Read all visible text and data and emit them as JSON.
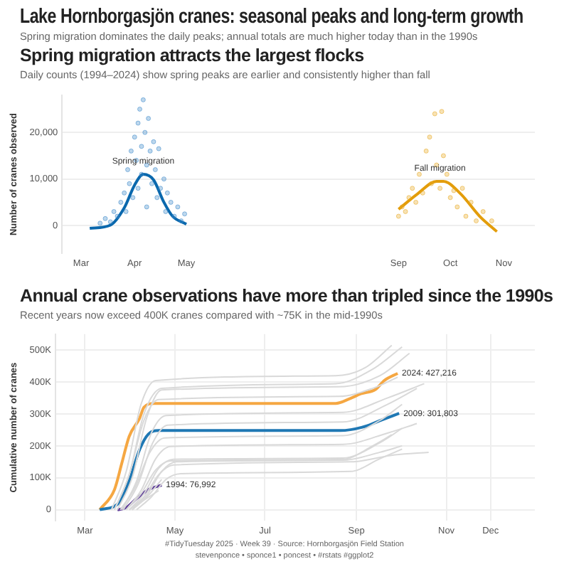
{
  "chart_data": [
    {
      "type": "line",
      "title": "Spring migration attracts the largest flocks",
      "subtitle": "Daily counts (1994–2024) show spring peaks are earlier and consistently higher than fall",
      "ylabel": "Number of cranes observed",
      "annotations": [
        "Lake Hornborgasjön cranes: seasonal peaks and long-term growth",
        "Spring migration dominates the daily peaks; annual totals are much higher today than in the 1990s",
        {
          "text": "Spring migration",
          "x": "--04-06",
          "y": 11000
        },
        {
          "text": "Fall migration",
          "x": "--09-25",
          "y": 9500
        }
      ],
      "xlim": [
        "--02-18",
        "--11-19"
      ],
      "xticks": [
        {
          "value": "--03-01",
          "label": "Mar"
        },
        {
          "value": "--04-01",
          "label": "Apr"
        },
        {
          "value": "--05-01",
          "label": "May"
        },
        {
          "value": "--09-01",
          "label": "Sep"
        },
        {
          "value": "--10-01",
          "label": "Oct"
        },
        {
          "value": "--11-01",
          "label": "Nov"
        }
      ],
      "ylim": [
        -6000,
        28000
      ],
      "yticks": [
        0,
        {
          "value": 10000,
          "label": "10,000"
        },
        {
          "value": 20000,
          "label": "20,000"
        }
      ],
      "grid": "y",
      "legend": false,
      "series": [
        {
          "type": "scatter",
          "color": "#3a87c8",
          "x": [
            "--03-12",
            "--03-15",
            "--03-18",
            "--03-20",
            "--03-22",
            "--03-24",
            "--03-26",
            "--03-27",
            "--03-28",
            "--03-29",
            "--03-30",
            "--03-31",
            "--04-01",
            "--04-02",
            "--04-03",
            "--04-03",
            "--04-04",
            "--04-05",
            "--04-05",
            "--04-06",
            "--04-07",
            "--04-08",
            "--04-08",
            "--04-09",
            "--04-10",
            "--04-11",
            "--04-12",
            "--04-13",
            "--04-14",
            "--04-15",
            "--04-16",
            "--04-18",
            "--04-19",
            "--04-20",
            "--04-22",
            "--04-24",
            "--04-26",
            "--04-28",
            "--04-30"
          ],
          "values": [
            500,
            1500,
            800,
            3000,
            2000,
            5000,
            7000,
            3000,
            12000,
            9000,
            16000,
            6000,
            19000,
            14000,
            22000,
            8000,
            25000,
            17000,
            11000,
            27000,
            20000,
            13000,
            4000,
            23000,
            16000,
            9000,
            18000,
            12000,
            6000,
            16500,
            8000,
            10000,
            3000,
            7000,
            5000,
            2000,
            4000,
            1000,
            2500
          ]
        },
        {
          "type": "scatter",
          "color": "#e8a820",
          "x": [
            "--09-01",
            "--09-03",
            "--09-05",
            "--09-07",
            "--09-09",
            "--09-11",
            "--09-13",
            "--09-15",
            "--09-17",
            "--09-19",
            "--09-20",
            "--09-22",
            "--09-23",
            "--09-25",
            "--09-26",
            "--09-27",
            "--09-29",
            "--10-01",
            "--10-03",
            "--10-05",
            "--10-08",
            "--10-10",
            "--10-13",
            "--10-16",
            "--10-20",
            "--10-25"
          ],
          "values": [
            2000,
            4000,
            3000,
            6000,
            8000,
            5000,
            11000,
            7000,
            16000,
            19000,
            9000,
            24000,
            13000,
            8000,
            24500,
            15000,
            11000,
            6000,
            7500,
            4000,
            8000,
            2000,
            5000,
            1000,
            3000,
            1000
          ]
        },
        {
          "type": "line",
          "color": "#0a68ad",
          "x": [
            "--03-06",
            "--03-18",
            "--03-26",
            "--04-01",
            "--04-06",
            "--04-12",
            "--04-18",
            "--04-23",
            "--05-01"
          ],
          "values": [
            -600,
            100,
            3800,
            8700,
            11000,
            9800,
            5000,
            2000,
            300
          ]
        },
        {
          "type": "line",
          "color": "#e39d0b",
          "x": [
            "--09-01",
            "--09-12",
            "--09-23",
            "--09-25",
            "--09-27",
            "--10-07",
            "--10-18",
            "--10-28"
          ],
          "values": [
            3500,
            6800,
            9500,
            9500,
            9500,
            6800,
            2000,
            -1300
          ]
        }
      ]
    },
    {
      "type": "line",
      "title": "Annual crane observations have more than tripled since the 1990s",
      "subtitle": "Recent years now exceed 400K cranes compared with ~75K in the mid-1990s",
      "ylabel": "Cumulative number of cranes",
      "annotations": [
        "#TidyTuesday 2025 · Week 39 · Source: Hornborgasjön Field Station",
        "stevenponce • sponce1 • poncest • #rstats #ggplot2",
        {
          "text": "2024: 427,216",
          "x": "--09-29",
          "y": 427216
        },
        {
          "text": "2009: 301,803",
          "x": "--09-30",
          "y": 301803
        },
        {
          "text": "1994: 76,992",
          "x": "--04-22",
          "y": 76992
        }
      ],
      "xlim": [
        "--02-09",
        "--12-31"
      ],
      "xticks": [
        {
          "value": "--03-01",
          "label": "Mar"
        },
        {
          "value": "--05-01",
          "label": "May"
        },
        {
          "value": "--07-01",
          "label": "Jul"
        },
        {
          "value": "--09-01",
          "label": "Sep"
        },
        {
          "value": "--11-01",
          "label": "Nov"
        },
        {
          "value": "--12-01",
          "label": "Dec"
        }
      ],
      "ylim": [
        -35000,
        550000
      ],
      "yticks": [
        0,
        {
          "value": 100000,
          "label": "100K"
        },
        {
          "value": 200000,
          "label": "200K"
        },
        {
          "value": 300000,
          "label": "300K"
        },
        {
          "value": 400000,
          "label": "400K"
        },
        {
          "value": 500000,
          "label": "500K"
        }
      ],
      "grid": true,
      "legend": false,
      "marker": "none",
      "series": [
        {
          "color": "#d9d9d9",
          "x": [
            "--03-19",
            "--03-29",
            "--04-08",
            "--04-18",
            "--08-18",
            "--09-07",
            "--09-25"
          ],
          "values": [
            0,
            120000,
            330000,
            405000,
            420000,
            445000,
            515000
          ]
        },
        {
          "color": "#d9d9d9",
          "x": [
            "--03-21",
            "--03-31",
            "--04-10",
            "--04-22",
            "--08-18",
            "--09-12",
            "--10-02"
          ],
          "values": [
            0,
            110000,
            300000,
            380000,
            395000,
            440000,
            510000
          ]
        },
        {
          "color": "#d9d9d9",
          "x": [
            "--03-23",
            "--04-02",
            "--04-12",
            "--04-22",
            "--08-20",
            "--09-17",
            "--10-07"
          ],
          "values": [
            0,
            100000,
            290000,
            375000,
            385000,
            420000,
            490000
          ]
        },
        {
          "color": "#d9d9d9",
          "x": [
            "--03-21",
            "--03-31",
            "--04-10",
            "--04-20",
            "--08-20",
            "--09-12",
            "--09-29"
          ],
          "values": [
            0,
            110000,
            280000,
            345000,
            355000,
            380000,
            415000
          ]
        },
        {
          "color": "#d9d9d9",
          "x": [
            "--03-26",
            "--04-05",
            "--04-15",
            "--04-25",
            "--08-23",
            "--09-22",
            "--10-17"
          ],
          "values": [
            0,
            90000,
            240000,
            295000,
            305000,
            350000,
            395000
          ]
        },
        {
          "color": "#d9d9d9",
          "x": [
            "--03-27",
            "--04-06",
            "--04-16",
            "--04-26",
            "--08-23",
            "--09-22",
            "--10-12"
          ],
          "values": [
            0,
            80000,
            210000,
            265000,
            275000,
            330000,
            380000
          ]
        },
        {
          "color": "#d9d9d9",
          "x": [
            "--03-25",
            "--04-04",
            "--04-14",
            "--04-24",
            "--08-23",
            "--09-17",
            "--10-02"
          ],
          "values": [
            0,
            70000,
            180000,
            225000,
            232000,
            280000,
            330000
          ]
        },
        {
          "color": "#d9d9d9",
          "x": [
            "--03-29",
            "--04-08",
            "--04-18",
            "--04-28",
            "--08-23",
            "--09-22",
            "--10-12"
          ],
          "values": [
            0,
            60000,
            160000,
            198000,
            205000,
            240000,
            270000
          ]
        },
        {
          "color": "#d9d9d9",
          "x": [
            "--03-31",
            "--04-10",
            "--04-20",
            "--04-30",
            "--08-23",
            "--09-17",
            "--10-02"
          ],
          "values": [
            0,
            50000,
            130000,
            158000,
            162000,
            210000,
            255000
          ]
        },
        {
          "color": "#d9d9d9",
          "x": [
            "--03-29",
            "--04-08",
            "--04-18",
            "--04-28",
            "--08-23",
            "--09-12",
            "--09-25"
          ],
          "values": [
            0,
            50000,
            125000,
            153000,
            158000,
            200000,
            235000
          ]
        },
        {
          "color": "#d9d9d9",
          "x": [
            "--04-02",
            "--04-12",
            "--04-22",
            "--05-02",
            "--08-23",
            "--09-17",
            "--10-02"
          ],
          "values": [
            0,
            45000,
            120000,
            150000,
            155000,
            180000,
            200000
          ]
        },
        {
          "color": "#d9d9d9",
          "x": [
            "--03-31",
            "--04-10",
            "--04-20",
            "--04-30",
            "--08-28",
            "--09-27",
            "--10-20"
          ],
          "values": [
            0,
            40000,
            110000,
            140000,
            150000,
            172000,
            180000
          ]
        },
        {
          "color": "#d9d9d9",
          "x": [
            "--04-05",
            "--04-15",
            "--04-25",
            "--05-05",
            "--08-28",
            "--09-17",
            "--10-02"
          ],
          "values": [
            0,
            40000,
            95000,
            113000,
            120000,
            160000,
            190000
          ]
        },
        {
          "color": "#d9d9d9",
          "x": [
            "--03-31",
            "--04-10",
            "--04-20"
          ],
          "values": [
            0,
            30000,
            60000
          ]
        },
        {
          "color": "#d9d9d9",
          "x": [
            "--04-02",
            "--04-12",
            "--04-22"
          ],
          "values": [
            0,
            40000,
            95000
          ]
        },
        {
          "color": "#5e3c99",
          "x": [
            "--03-23",
            "--03-29",
            "--04-05",
            "--04-13",
            "--04-22"
          ],
          "values": [
            0,
            7000,
            35000,
            63000,
            76992
          ]
        },
        {
          "color": "#1f78b4",
          "x": [
            "--03-11",
            "--03-24",
            "--03-31",
            "--04-07",
            "--04-13",
            "--04-20",
            "--08-21",
            "--09-07",
            "--09-17",
            "--09-30"
          ],
          "values": [
            0,
            21000,
            91000,
            188000,
            237000,
            248000,
            248000,
            261000,
            279000,
            301803
          ]
        },
        {
          "color": "#f5a742",
          "x": [
            "--03-11",
            "--03-21",
            "--03-26",
            "--03-31",
            "--04-07",
            "--04-10",
            "--04-17",
            "--08-18",
            "--08-28",
            "--09-04",
            "--09-14",
            "--09-20",
            "--09-29"
          ],
          "values": [
            0,
            63000,
            146000,
            230000,
            286000,
            321000,
            333000,
            333000,
            349000,
            363000,
            377000,
            405000,
            427216
          ]
        }
      ]
    }
  ]
}
